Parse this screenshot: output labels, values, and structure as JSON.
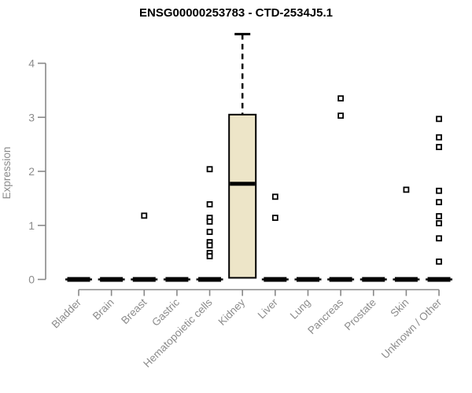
{
  "chart_data": {
    "type": "boxplot",
    "title": "ENSG00000253783 - CTD-2534J5.1",
    "ylabel": "Expression",
    "ylim": [
      0,
      4.6
    ],
    "yticks": [
      0,
      1,
      2,
      3,
      4
    ],
    "grid": false,
    "legend": "none",
    "categories": [
      "Bladder",
      "Brain",
      "Breast",
      "Gastric",
      "Hematopoietic cells",
      "Kidney",
      "Liver",
      "Lung",
      "Pancreas",
      "Prostate",
      "Skin",
      "Unknown / Other"
    ],
    "boxes": [
      {
        "category": "Bladder",
        "q1": 0,
        "median": 0,
        "q3": 0,
        "whisker_low": 0,
        "whisker_high": 0,
        "outliers": []
      },
      {
        "category": "Brain",
        "q1": 0,
        "median": 0,
        "q3": 0,
        "whisker_low": 0,
        "whisker_high": 0,
        "outliers": []
      },
      {
        "category": "Breast",
        "q1": 0,
        "median": 0,
        "q3": 0,
        "whisker_low": 0,
        "whisker_high": 0,
        "outliers": [
          1.18
        ]
      },
      {
        "category": "Gastric",
        "q1": 0,
        "median": 0,
        "q3": 0,
        "whisker_low": 0,
        "whisker_high": 0,
        "outliers": []
      },
      {
        "category": "Hematopoietic cells",
        "q1": 0,
        "median": 0,
        "q3": 0,
        "whisker_low": 0,
        "whisker_high": 0,
        "outliers": [
          2.04,
          1.39,
          1.14,
          1.07,
          0.88,
          0.69,
          0.63,
          0.49,
          0.43
        ]
      },
      {
        "category": "Kidney",
        "q1": 0.03,
        "median": 1.77,
        "q3": 3.05,
        "whisker_low": 0.03,
        "whisker_high": 4.54,
        "outliers": []
      },
      {
        "category": "Liver",
        "q1": 0,
        "median": 0,
        "q3": 0,
        "whisker_low": 0,
        "whisker_high": 0,
        "outliers": [
          1.53,
          1.14
        ]
      },
      {
        "category": "Lung",
        "q1": 0,
        "median": 0,
        "q3": 0,
        "whisker_low": 0,
        "whisker_high": 0,
        "outliers": []
      },
      {
        "category": "Pancreas",
        "q1": 0,
        "median": 0,
        "q3": 0,
        "whisker_low": 0,
        "whisker_high": 0,
        "outliers": [
          3.35,
          3.03
        ]
      },
      {
        "category": "Prostate",
        "q1": 0,
        "median": 0,
        "q3": 0,
        "whisker_low": 0,
        "whisker_high": 0,
        "outliers": []
      },
      {
        "category": "Skin",
        "q1": 0,
        "median": 0,
        "q3": 0,
        "whisker_low": 0,
        "whisker_high": 0,
        "outliers": [
          1.66
        ]
      },
      {
        "category": "Unknown / Other",
        "q1": 0,
        "median": 0,
        "q3": 0,
        "whisker_low": 0,
        "whisker_high": 0,
        "outliers": [
          2.97,
          2.63,
          2.45,
          1.64,
          1.43,
          1.17,
          1.04,
          0.76,
          0.33
        ]
      }
    ],
    "colors": {
      "box_fill": "#EDE5C8",
      "box_border": "#000000",
      "median": "#000000",
      "outlier_fill": "#ffffff",
      "outlier_border": "#000000",
      "axis": "#888888",
      "tick_label": "#8c8c8c",
      "title": "#000000"
    }
  }
}
